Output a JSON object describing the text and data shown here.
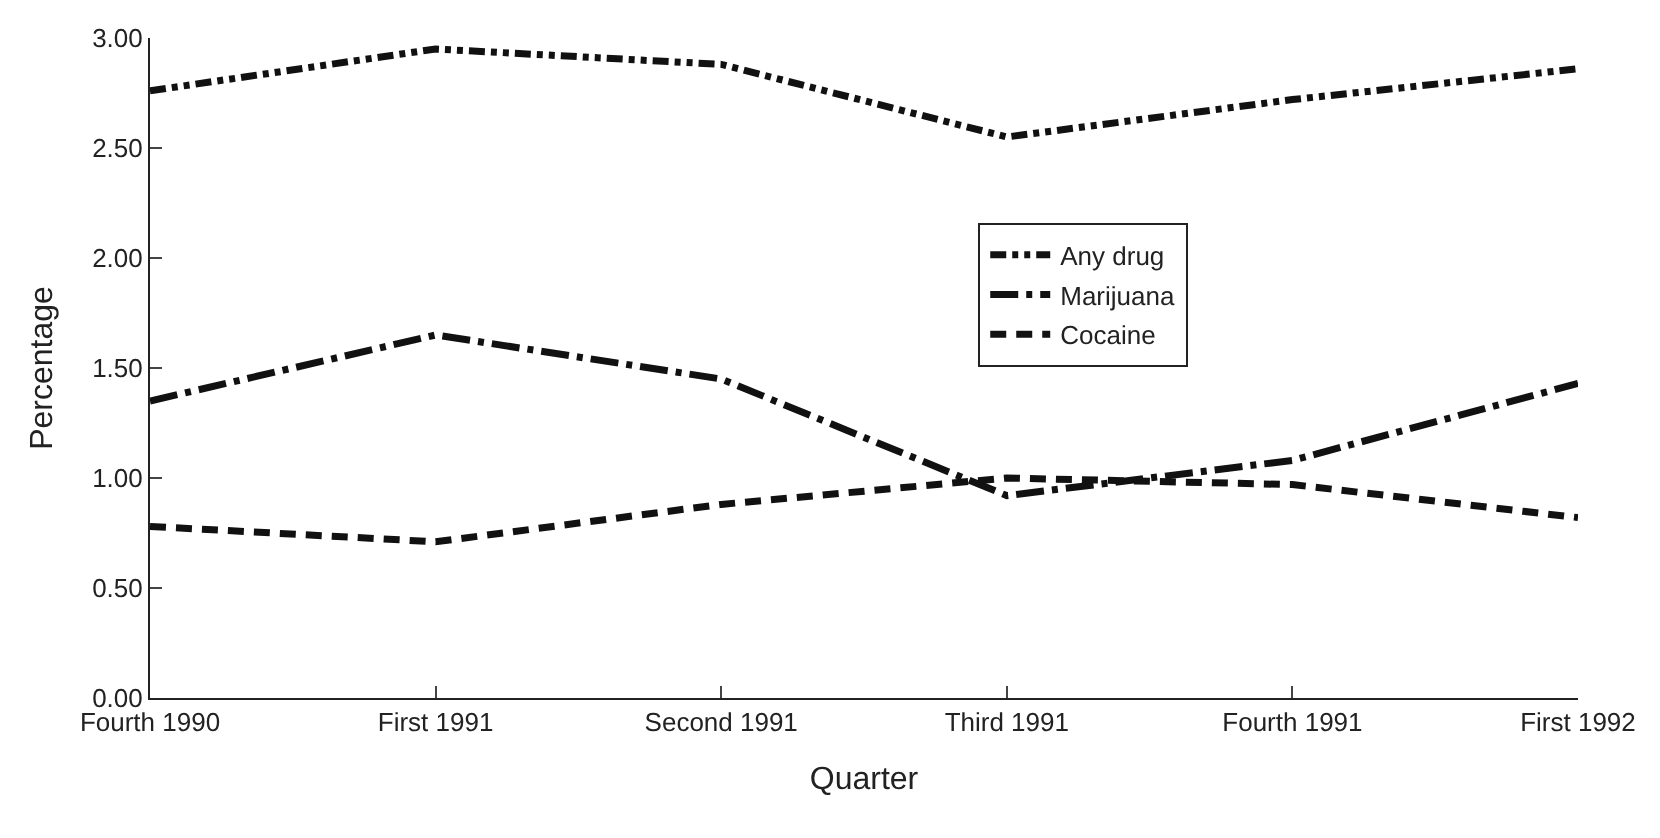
{
  "chart_data": {
    "type": "line",
    "xlabel": "Quarter",
    "ylabel": "Percentage",
    "categories": [
      "Fourth 1990",
      "First 1991",
      "Second 1991",
      "Third 1991",
      "Fourth 1991",
      "First 1992"
    ],
    "series": [
      {
        "name": "Any drug",
        "color": "#111111",
        "line_style": "dashdotdot",
        "values": [
          2.76,
          2.95,
          2.88,
          2.55,
          2.72,
          2.86
        ]
      },
      {
        "name": "Marijuana",
        "color": "#111111",
        "line_style": "longdashdot",
        "values": [
          1.35,
          1.65,
          1.45,
          0.92,
          1.08,
          1.43
        ]
      },
      {
        "name": "Cocaine",
        "color": "#111111",
        "line_style": "dashed",
        "values": [
          0.78,
          0.71,
          0.88,
          1.0,
          0.97,
          0.82
        ]
      }
    ],
    "ylim": [
      0,
      3
    ],
    "yticks": [
      {
        "value": 0,
        "label": "0.00"
      },
      {
        "value": 0.5,
        "label": "0.50"
      },
      {
        "value": 1,
        "label": "1.00"
      },
      {
        "value": 1.5,
        "label": "1.50"
      },
      {
        "value": 2,
        "label": "2.00"
      },
      {
        "value": 2.5,
        "label": "2.50"
      },
      {
        "value": 3,
        "label": "3.00"
      }
    ],
    "legend": "right",
    "marker": "none"
  }
}
